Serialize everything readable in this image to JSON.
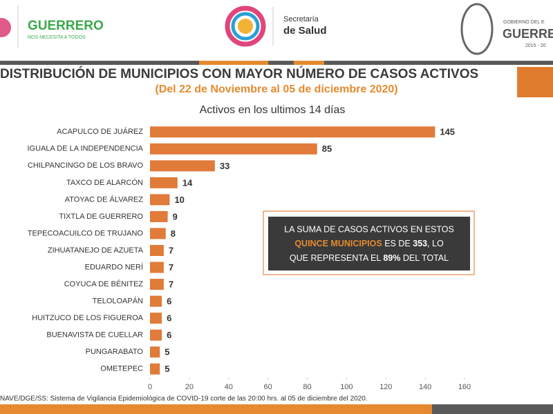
{
  "header": {
    "brand": "GUERRERO",
    "slogan": "NOS NECESITA A TODOS",
    "dept_1": "Secretaría",
    "dept_2": "de Salud",
    "gov_1": "GOBIERNO DEL E",
    "gov_2": "GUERRER",
    "gov_3": "2015 - 20"
  },
  "callout": {
    "line_1": "LA SUMA DE CASOS ACTIVOS EN ESTOS",
    "line_2": [
      "QUINCE MUNICIPIOS",
      " ES DE ",
      "353",
      ", LO"
    ],
    "line_3": [
      "QUE REPRESENTA EL ",
      "89%",
      " DEL TOTAL"
    ]
  },
  "source": "NAVE/DGE/SS: Sistema de Vigilancia Epidemiológica de COVID-19 corte de las 20:00 hrs. al 05 de diciembre del 2020.",
  "chart_data": {
    "type": "bar",
    "orientation": "horizontal",
    "title": "DISTRIBUCIÓN DE MUNICIPIOS CON MAYOR NÚMERO DE  CASOS ACTIVOS",
    "subtitle": "(Del 22 de Noviembre al 05 de diciembre 2020)",
    "chart_title": "Activos en los ultimos 14 días",
    "categories": [
      "ACAPULCO DE JUÁREZ",
      "IGUALA DE LA INDEPENDENCIA",
      "CHILPANCINGO DE LOS BRAVO",
      "TAXCO DE ALARCÓN",
      "ATOYAC DE ÁLVAREZ",
      "TIXTLA DE GUERRERO",
      "TEPECOACUILCO DE TRUJANO",
      "ZIHUATANEJO DE AZUETA",
      "EDUARDO NERÍ",
      "COYUCA DE BÉNITEZ",
      "TELOLOAPÁN",
      "HUITZUCO DE LOS FIGUEROA",
      "BUENAVISTA DE CUELLAR",
      "PUNGARABATO",
      "OMETEPEC"
    ],
    "values": [
      145,
      85,
      33,
      14,
      10,
      9,
      8,
      7,
      7,
      7,
      6,
      6,
      6,
      5,
      5
    ],
    "color": "#e07b39",
    "xlim": [
      0,
      160
    ],
    "xticks": [
      0,
      20,
      40,
      60,
      80,
      100,
      120,
      140,
      160
    ]
  }
}
